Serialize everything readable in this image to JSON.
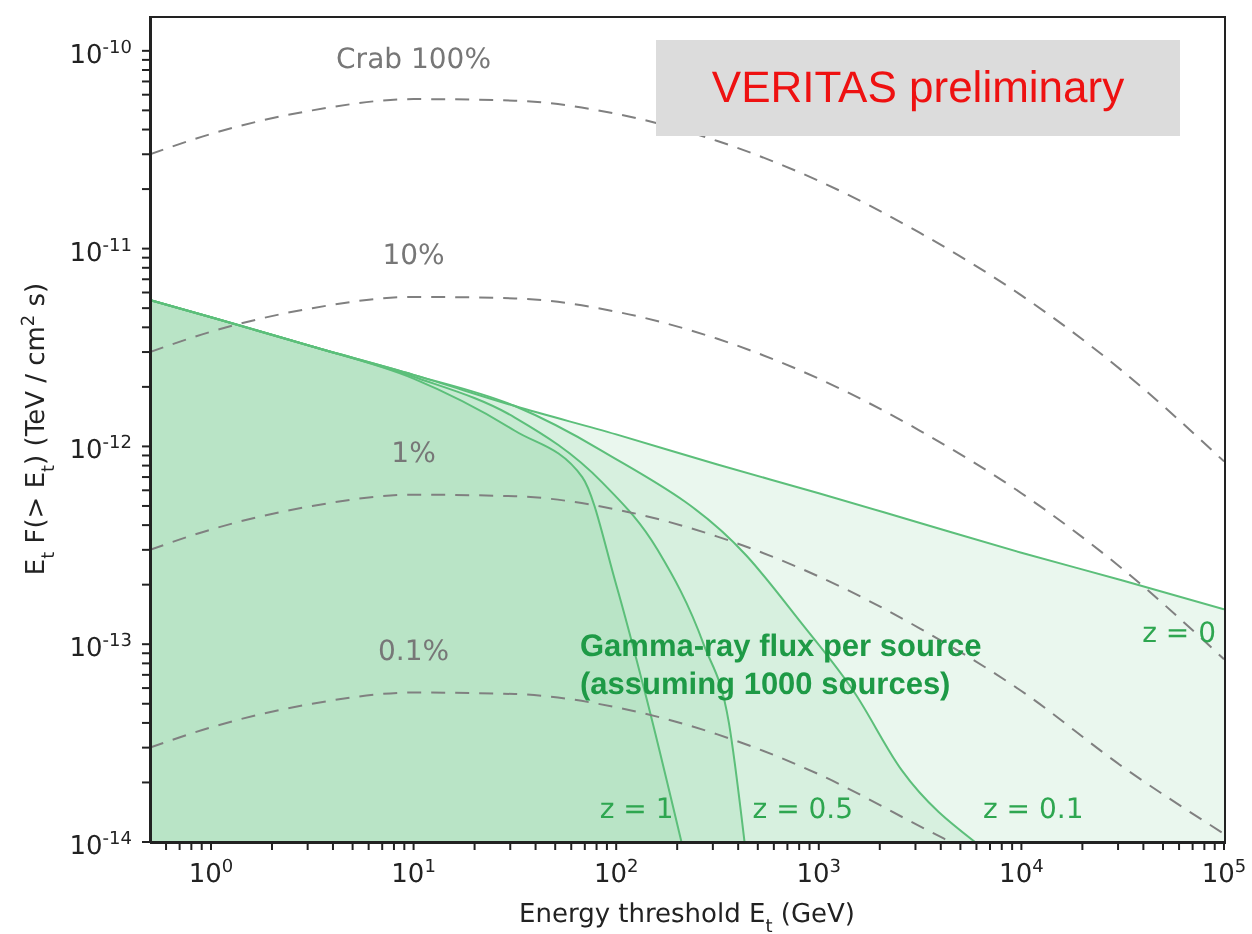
{
  "chart_data": {
    "type": "area",
    "xlabel": "Energy threshold E$_{t}$ (GeV)",
    "ylabel": "E$_{t}$ F(> E$_{t}$) (TeV / cm$^{2}$  s)",
    "log": "xy",
    "xlim": [
      0.5,
      100000
    ],
    "ylim": [
      1e-14,
      1.5e-10
    ],
    "xticks": [
      {
        "value": 0.6,
        "label": null
      },
      {
        "value": 0.7,
        "label": null
      },
      {
        "value": 0.8,
        "label": null
      },
      {
        "value": 0.9,
        "label": null
      },
      {
        "value": 1,
        "label": "10$^{0}$"
      },
      {
        "value": 2,
        "label": null
      },
      {
        "value": 3,
        "label": null
      },
      {
        "value": 4,
        "label": null
      },
      {
        "value": 5,
        "label": null
      },
      {
        "value": 6,
        "label": null
      },
      {
        "value": 7,
        "label": null
      },
      {
        "value": 8,
        "label": null
      },
      {
        "value": 9,
        "label": null
      },
      {
        "value": 10,
        "label": "10$^{1}$"
      },
      {
        "value": 20,
        "label": null
      },
      {
        "value": 30,
        "label": null
      },
      {
        "value": 40,
        "label": null
      },
      {
        "value": 50,
        "label": null
      },
      {
        "value": 60,
        "label": null
      },
      {
        "value": 70,
        "label": null
      },
      {
        "value": 80,
        "label": null
      },
      {
        "value": 90,
        "label": null
      },
      {
        "value": 100,
        "label": "10$^{2}$"
      },
      {
        "value": 200,
        "label": null
      },
      {
        "value": 300,
        "label": null
      },
      {
        "value": 400,
        "label": null
      },
      {
        "value": 500,
        "label": null
      },
      {
        "value": 600,
        "label": null
      },
      {
        "value": 700,
        "label": null
      },
      {
        "value": 800,
        "label": null
      },
      {
        "value": 900,
        "label": null
      },
      {
        "value": 1000,
        "label": "10$^{3}$"
      },
      {
        "value": 2000,
        "label": null
      },
      {
        "value": 3000,
        "label": null
      },
      {
        "value": 4000,
        "label": null
      },
      {
        "value": 5000,
        "label": null
      },
      {
        "value": 6000,
        "label": null
      },
      {
        "value": 7000,
        "label": null
      },
      {
        "value": 8000,
        "label": null
      },
      {
        "value": 9000,
        "label": null
      },
      {
        "value": 10000,
        "label": "10$^{4}$"
      },
      {
        "value": 20000,
        "label": null
      },
      {
        "value": 30000,
        "label": null
      },
      {
        "value": 40000,
        "label": null
      },
      {
        "value": 50000,
        "label": null
      },
      {
        "value": 60000,
        "label": null
      },
      {
        "value": 70000,
        "label": null
      },
      {
        "value": 80000,
        "label": null
      },
      {
        "value": 90000,
        "label": null
      },
      {
        "value": 100000,
        "label": "10$^{5}$"
      }
    ],
    "yticks": [
      {
        "value": 1e-14,
        "label": "10$^{-14}$"
      },
      {
        "value": 2e-14,
        "label": null
      },
      {
        "value": 3e-14,
        "label": null
      },
      {
        "value": 4e-14,
        "label": null
      },
      {
        "value": 5e-14,
        "label": null
      },
      {
        "value": 6e-14,
        "label": null
      },
      {
        "value": 7e-14,
        "label": null
      },
      {
        "value": 8e-14,
        "label": null
      },
      {
        "value": 9e-14,
        "label": null
      },
      {
        "value": 1e-13,
        "label": "10$^{-13}$"
      },
      {
        "value": 2e-13,
        "label": null
      },
      {
        "value": 3e-13,
        "label": null
      },
      {
        "value": 4e-13,
        "label": null
      },
      {
        "value": 5e-13,
        "label": null
      },
      {
        "value": 6e-13,
        "label": null
      },
      {
        "value": 7e-13,
        "label": null
      },
      {
        "value": 8e-13,
        "label": null
      },
      {
        "value": 9e-13,
        "label": null
      },
      {
        "value": 1e-12,
        "label": "10$^{-12}$"
      },
      {
        "value": 2e-12,
        "label": null
      },
      {
        "value": 3e-12,
        "label": null
      },
      {
        "value": 4e-12,
        "label": null
      },
      {
        "value": 5e-12,
        "label": null
      },
      {
        "value": 6e-12,
        "label": null
      },
      {
        "value": 7e-12,
        "label": null
      },
      {
        "value": 8e-12,
        "label": null
      },
      {
        "value": 9e-12,
        "label": null
      },
      {
        "value": 1e-11,
        "label": "10$^{-11}$"
      },
      {
        "value": 2e-11,
        "label": null
      },
      {
        "value": 3e-11,
        "label": null
      },
      {
        "value": 4e-11,
        "label": null
      },
      {
        "value": 5e-11,
        "label": null
      },
      {
        "value": 6e-11,
        "label": null
      },
      {
        "value": 7e-11,
        "label": null
      },
      {
        "value": 8e-11,
        "label": null
      },
      {
        "value": 9e-11,
        "label": null
      },
      {
        "value": 1e-10,
        "label": "10$^{-10}$"
      }
    ],
    "annotations": [
      "VERITAS preliminary",
      "Gamma-ray flux per source (assuming 1000 sources)"
    ],
    "series": [
      {
        "name": "z = 1",
        "color": "#5cbf7a",
        "line_style": "solid",
        "x": [
          0.5,
          1,
          3.16,
          10,
          31.6,
          68,
          100,
          140,
          210
        ],
        "values": [
          5.5e-12,
          4.5e-12,
          3.2e-12,
          2.2e-12,
          1.2e-12,
          7e-13,
          2e-13,
          5.5e-14,
          1e-14
        ]
      },
      {
        "name": "z = 0.5",
        "color": "#5cbf7a",
        "line_style": "solid",
        "x": [
          0.5,
          1,
          3.16,
          10,
          31.6,
          85,
          160,
          270,
          360,
          430
        ],
        "values": [
          5.5e-12,
          4.5e-12,
          3.2e-12,
          2.25e-12,
          1.4e-12,
          6.6e-13,
          3e-13,
          1e-13,
          4e-14,
          1e-14
        ]
      },
      {
        "name": "z = 0.1",
        "color": "#5cbf7a",
        "line_style": "solid",
        "x": [
          0.5,
          1,
          3.16,
          10,
          31.6,
          85,
          440,
          810,
          1500,
          2570,
          5900
        ],
        "values": [
          5.5e-12,
          4.5e-12,
          3.2e-12,
          2.3e-12,
          1.6e-12,
          9.5e-13,
          2.8e-13,
          1.3e-13,
          5.7e-14,
          2.3e-14,
          1e-14
        ]
      },
      {
        "name": "z = 0",
        "color": "#5cbf7a",
        "line_style": "solid",
        "x": [
          0.5,
          1,
          3.16,
          10,
          31.6,
          100,
          316,
          1000,
          3160,
          10000,
          31600,
          100000
        ],
        "values": [
          5.5e-12,
          4.5e-12,
          3.2e-12,
          2.3e-12,
          1.6e-12,
          1.15e-12,
          8.1e-13,
          5.8e-13,
          4.1e-13,
          2.9e-13,
          2.1e-13,
          1.5e-13
        ]
      },
      {
        "name": "Crab 100%",
        "type": "line",
        "color": "#808080",
        "line_style": "dashed",
        "x": [
          0.5,
          1,
          3.16,
          10,
          31.6,
          100,
          316,
          1000,
          3160,
          10000,
          31600,
          100000
        ],
        "values": [
          3e-11,
          3.8e-11,
          5e-11,
          5.7e-11,
          5.6e-11,
          4.8e-11,
          3.5e-11,
          2.2e-11,
          1.2e-11,
          5.8e-12,
          2.4e-12,
          8.4e-13
        ]
      },
      {
        "name": "10%",
        "type": "line",
        "color": "#808080",
        "line_style": "dashed",
        "x": [
          0.5,
          1,
          3.16,
          10,
          31.6,
          100,
          316,
          1000,
          3160,
          10000,
          31600,
          100000
        ],
        "values": [
          3e-12,
          3.8e-12,
          5e-12,
          5.7e-12,
          5.6e-12,
          4.8e-12,
          3.5e-12,
          2.2e-12,
          1.2e-12,
          5.8e-13,
          2.4e-13,
          8.4e-14
        ]
      },
      {
        "name": "1%",
        "type": "line",
        "color": "#808080",
        "line_style": "dashed",
        "x": [
          0.5,
          1,
          3.16,
          10,
          31.6,
          100,
          316,
          1000,
          3160,
          10000,
          31600,
          100000
        ],
        "values": [
          3e-13,
          3.8e-13,
          5e-13,
          5.7e-13,
          5.6e-13,
          4.8e-13,
          3.5e-13,
          2.2e-13,
          1.2e-13,
          5.8e-14,
          2.4e-14,
          1.1e-14
        ]
      },
      {
        "name": "0.1%",
        "type": "line",
        "color": "#808080",
        "line_style": "dashed",
        "x": [
          0.5,
          1,
          3.16,
          10,
          31.6,
          100,
          316,
          1000,
          3160,
          4470
        ],
        "values": [
          3e-14,
          3.8e-14,
          5e-14,
          5.7e-14,
          5.6e-14,
          4.8e-14,
          3.5e-14,
          2.2e-14,
          1.2e-14,
          1e-14
        ]
      }
    ]
  }
}
